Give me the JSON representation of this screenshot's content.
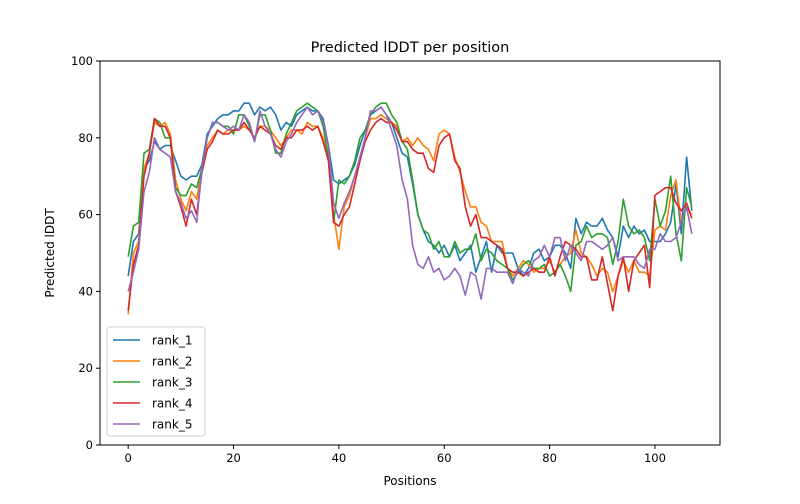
{
  "chart_data": {
    "type": "line",
    "title": "Predicted lDDT per position",
    "xlabel": "Positions",
    "ylabel": "Predicted lDDT",
    "xlim": [
      -5.35,
      112.35
    ],
    "ylim": [
      0,
      100
    ],
    "xticks": [
      0,
      20,
      40,
      60,
      80,
      100
    ],
    "yticks": [
      0,
      20,
      40,
      60,
      80,
      100
    ],
    "grid": false,
    "legend_position": "lower-left",
    "series": [
      {
        "name": "rank_1",
        "color": "#1f77b4",
        "values": [
          44,
          53,
          55,
          72,
          74,
          79,
          77,
          78,
          78,
          74,
          70,
          69,
          70,
          70,
          73,
          81,
          83,
          85,
          86,
          86,
          87,
          87,
          89,
          89,
          86,
          88,
          87,
          88,
          86,
          82,
          84,
          83,
          86,
          87,
          88,
          87,
          87,
          85,
          78,
          69,
          68,
          69,
          70,
          73,
          78,
          82,
          86,
          87,
          88,
          86,
          84,
          80,
          76,
          75,
          68,
          60,
          56,
          53,
          52,
          50,
          52,
          49,
          52,
          48,
          50,
          52,
          45,
          49,
          53,
          45,
          52,
          50,
          50,
          50,
          46,
          44,
          46,
          50,
          51,
          48,
          49,
          52,
          52,
          50,
          46,
          59,
          55,
          58,
          57,
          57,
          59,
          56,
          54,
          49,
          57,
          54,
          57,
          55,
          56,
          53,
          53,
          53,
          55,
          58,
          68,
          55,
          75,
          61
        ]
      },
      {
        "name": "rank_2",
        "color": "#ff7f0e",
        "values": [
          34,
          50,
          53,
          72,
          76,
          84,
          83,
          84,
          81,
          69,
          64,
          61,
          66,
          64,
          72,
          78,
          80,
          82,
          81,
          82,
          82,
          82,
          83,
          82,
          80,
          83,
          83,
          82,
          80,
          78,
          80,
          82,
          82,
          81,
          84,
          83,
          83,
          80,
          75,
          60,
          51,
          62,
          65,
          70,
          75,
          80,
          85,
          85,
          86,
          85,
          84,
          83,
          79,
          80,
          78,
          80,
          78,
          77,
          74,
          81,
          82,
          81,
          75,
          71,
          66,
          62,
          62,
          58,
          57,
          53,
          53,
          53,
          46,
          44,
          46,
          48,
          47,
          45,
          46,
          46,
          48,
          45,
          47,
          49,
          50,
          56,
          50,
          49,
          47,
          44,
          46,
          45,
          40,
          44,
          48,
          45,
          48,
          45,
          45,
          44,
          56,
          57,
          56,
          65,
          69,
          58,
          62,
          60
        ]
      },
      {
        "name": "rank_3",
        "color": "#2ca02c",
        "values": [
          49,
          57,
          58,
          76,
          77,
          85,
          84,
          80,
          80,
          67,
          65,
          65,
          68,
          67,
          72,
          80,
          84,
          84,
          83,
          83,
          81,
          86,
          86,
          83,
          79,
          86,
          86,
          82,
          76,
          76,
          81,
          84,
          87,
          88,
          89,
          88,
          87,
          83,
          75,
          58,
          69,
          68,
          70,
          74,
          80,
          82,
          86,
          88,
          89,
          89,
          86,
          84,
          79,
          77,
          69,
          60,
          56,
          55,
          51,
          53,
          49,
          49,
          53,
          50,
          51,
          51,
          55,
          48,
          51,
          50,
          48,
          47,
          46,
          43,
          45,
          47,
          48,
          46,
          46,
          47,
          44,
          45,
          47,
          44,
          40,
          52,
          53,
          57,
          54,
          55,
          55,
          54,
          47,
          53,
          64,
          57,
          55,
          56,
          54,
          48,
          64,
          57,
          61,
          70,
          55,
          48,
          67,
          62
        ]
      },
      {
        "name": "rank_4",
        "color": "#d62728",
        "values": [
          35,
          47,
          52,
          70,
          76,
          85,
          83,
          83,
          80,
          66,
          62,
          57,
          64,
          60,
          71,
          77,
          79,
          82,
          81,
          81,
          82,
          82,
          84,
          82,
          80,
          83,
          82,
          81,
          78,
          77,
          80,
          80,
          82,
          82,
          83,
          82,
          83,
          79,
          74,
          58,
          57,
          60,
          62,
          68,
          74,
          79,
          82,
          84,
          85,
          84,
          84,
          82,
          79,
          79,
          77,
          76,
          76,
          72,
          71,
          78,
          80,
          81,
          74,
          72,
          62,
          57,
          60,
          54,
          54,
          53,
          52,
          51,
          46,
          45,
          45,
          44,
          45,
          46,
          45,
          45,
          49,
          44,
          49,
          53,
          52,
          51,
          49,
          49,
          43,
          43,
          49,
          42,
          35,
          44,
          49,
          40,
          48,
          50,
          52,
          41,
          65,
          66,
          67,
          67,
          63,
          61,
          63,
          59
        ]
      },
      {
        "name": "rank_5",
        "color": "#9467bd",
        "values": [
          40,
          45,
          51,
          66,
          71,
          80,
          77,
          76,
          75,
          66,
          63,
          59,
          61,
          58,
          72,
          80,
          84,
          84,
          83,
          82,
          83,
          82,
          86,
          84,
          79,
          87,
          83,
          81,
          77,
          75,
          79,
          81,
          84,
          86,
          88,
          86,
          87,
          84,
          78,
          63,
          59,
          63,
          66,
          70,
          75,
          80,
          87,
          87,
          88,
          86,
          82,
          78,
          69,
          64,
          52,
          47,
          46,
          49,
          45,
          46,
          43,
          44,
          46,
          44,
          39,
          45,
          44,
          38,
          46,
          46,
          45,
          45,
          45,
          42,
          46,
          45,
          44,
          48,
          49,
          52,
          49,
          54,
          54,
          48,
          52,
          50,
          48,
          53,
          53,
          52,
          51,
          52,
          54,
          48,
          49,
          49,
          49,
          47,
          46,
          51,
          51,
          55,
          53,
          53,
          54,
          58,
          62,
          55
        ]
      }
    ]
  }
}
